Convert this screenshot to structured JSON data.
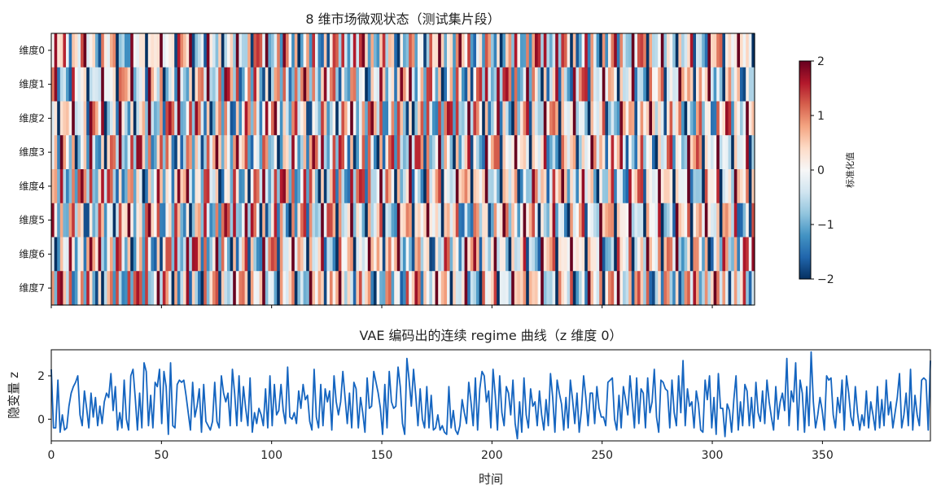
{
  "chart_data": [
    {
      "type": "heatmap",
      "title": "8 维市场微观状态（测试集片段）",
      "rows": [
        "维度0",
        "维度1",
        "维度2",
        "维度3",
        "维度4",
        "维度5",
        "维度6",
        "维度7"
      ],
      "x_range": [
        0,
        399
      ],
      "colorbar": {
        "label": "标准化值",
        "range": [
          -2,
          2
        ],
        "ticks": [
          "−2",
          "−1",
          "0",
          "1",
          "2"
        ],
        "colormap": "RdBu_r"
      },
      "colors": {
        "low": "#053061",
        "mid": "#f7f7f7",
        "high": "#67001f"
      }
    },
    {
      "type": "line",
      "title": "VAE 编码出的连续 regime 曲线（z 维度 0）",
      "xlabel": "时间",
      "ylabel": "隐变量 z",
      "xlim": [
        0,
        399
      ],
      "ylim": [
        -1.0,
        3.2
      ],
      "xticks": [
        "0",
        "50",
        "100",
        "150",
        "200",
        "250",
        "300",
        "350"
      ],
      "yticks": [
        "0",
        "2"
      ],
      "color": "#1565c0",
      "series": [
        {
          "values": [
            2.3,
            -0.4,
            -0.4,
            1.8,
            -0.6,
            0.2,
            -0.5,
            -0.4,
            0.6,
            1.2,
            1.5,
            1.7,
            2.0,
            0.2,
            -0.3,
            1.3,
            0.5,
            -0.4,
            1.2,
            0.1,
            1.0,
            -0.3,
            0.6,
            -0.2,
            0.8,
            1.2,
            1.0,
            2.1,
            0.4,
            1.5,
            -0.5,
            0.3,
            -0.4,
            1.8,
            0.0,
            -0.5,
            2.0,
            2.3,
            1.0,
            -0.5,
            1.2,
            -0.4,
            2.6,
            2.2,
            -0.3,
            1.1,
            -0.4,
            1.7,
            1.5,
            2.3,
            -0.2,
            2.2,
            1.5,
            -0.7,
            2.6,
            -0.3,
            -0.4,
            1.6,
            1.8,
            1.7,
            1.8,
            1.1,
            0.3,
            -0.5,
            1.7,
            0.1,
            0.6,
            1.4,
            -0.6,
            1.6,
            -0.1,
            -0.3,
            -0.5,
            -0.1,
            1.7,
            -0.1,
            -0.4,
            2.0,
            1.2,
            0.8,
            1.2,
            -0.3,
            2.3,
            1.2,
            -0.3,
            2.0,
            -0.1,
            1.5,
            0.5,
            -0.3,
            1.9,
            -0.6,
            0.3,
            -0.2,
            0.5,
            0.2,
            -0.3,
            1.4,
            -0.4,
            2.0,
            -0.3,
            1.6,
            0.2,
            0.4,
            1.6,
            0.4,
            -0.2,
            2.4,
            0.1,
            0.0,
            0.3,
            -0.2,
            1.3,
            0.5,
            1.6,
            0.9,
            1.1,
            -0.1,
            -0.5,
            2.3,
            0.1,
            -0.4,
            1.6,
            -0.3,
            1.4,
            0.8,
            1.3,
            -0.5,
            2.0,
            0.8,
            0.2,
            0.8,
            2.2,
            1.0,
            -0.2,
            1.2,
            -0.4,
            1.7,
            1.4,
            -0.4,
            1.0,
            0.3,
            -0.6,
            1.9,
            0.5,
            0.6,
            2.2,
            1.7,
            1.2,
            0.5,
            -0.7,
            1.6,
            -0.4,
            2.2,
            0.8,
            0.5,
            0.6,
            2.4,
            1.5,
            -0.2,
            -0.7,
            2.8,
            1.8,
            0.6,
            2.3,
            1.1,
            -0.3,
            1.4,
            0.0,
            -0.4,
            1.5,
            -0.4,
            1.1,
            -0.5,
            -0.4,
            0.2,
            -0.5,
            -0.3,
            -0.6,
            -0.7,
            1.5,
            -0.4,
            0.4,
            -0.5,
            -0.7,
            -0.3,
            0.9,
            0.3,
            -0.2,
            1.7,
            0.8,
            -0.3,
            1.9,
            -0.5,
            1.4,
            2.2,
            2.0,
            0.8,
            1.3,
            -0.4,
            2.3,
            1.1,
            -0.5,
            2.0,
            0.3,
            -0.3,
            1.5,
            1.2,
            0.2,
            1.8,
            -0.2,
            -0.9,
            0.8,
            -0.6,
            1.9,
            0.2,
            -0.4,
            1.4,
            0.6,
            0.8,
            -0.3,
            1.3,
            0.2,
            -0.5,
            0.9,
            -0.3,
            2.1,
            1.0,
            -0.6,
            1.8,
            1.2,
            0.7,
            -0.5,
            1.0,
            -0.4,
            1.8,
            0.9,
            -0.2,
            1.2,
            -0.6,
            0.4,
            2.0,
            1.0,
            -0.3,
            1.2,
            1.2,
            -0.2,
            1.5,
            0.5,
            0.1,
            0.1,
            -0.3,
            1.7,
            1.8,
            1.9,
            0.0,
            -0.5,
            1.1,
            -0.4,
            1.5,
            0.9,
            0.2,
            2.0,
            0.8,
            -0.4,
            1.9,
            -0.2,
            1.4,
            1.2,
            -0.4,
            1.9,
            0.3,
            0.8,
            2.3,
            0.1,
            -0.6,
            1.8,
            1.7,
            1.4,
            1.3,
            -0.4,
            1.8,
            0.3,
            -0.3,
            2.0,
            0.3,
            2.7,
            -0.3,
            1.4,
            0.6,
            0.8,
            -0.4,
            1.3,
            0.7,
            -0.5,
            -0.6,
            1.8,
            0.9,
            2.0,
            -0.4,
            1.0,
            -0.7,
            2.1,
            0.5,
            0.5,
            -0.8,
            0.7,
            0.4,
            -0.6,
            0.9,
            2.0,
            -0.5,
            0.8,
            -0.3,
            1.6,
            1.3,
            -0.3,
            1.0,
            -0.4,
            1.7,
            0.3,
            -0.1,
            1.3,
            -0.2,
            1.8,
            0.8,
            0.1,
            -0.5,
            1.5,
            0.0,
            0.8,
            1.2,
            0.4,
            2.8,
            -0.3,
            1.3,
            0.8,
            2.6,
            -0.5,
            1.8,
            1.2,
            -0.6,
            1.5,
            -0.3,
            3.1,
            0.8,
            -0.4,
            0.2,
            1.0,
            0.4,
            -0.5,
            2.0,
            1.8,
            1.9,
            0.2,
            -0.4,
            1.0,
            0.3,
            1.8,
            -0.5,
            2.0,
            1.2,
            0.1,
            -0.3,
            1.5,
            0.3,
            -0.5,
            0.2,
            -0.3,
            1.3,
            -0.4,
            0.8,
            0.2,
            -0.5,
            1.5,
            -0.4,
            0.9,
            -0.3,
            1.8,
            0.2,
            0.8,
            -0.4,
            0.3,
            1.0,
            2.1,
            -0.4,
            0.2,
            1.2,
            -0.3,
            2.3,
            -0.5,
            1.1,
            0.2,
            -0.3,
            1.8,
            1.9,
            1.8,
            -0.5,
            2.7
          ]
        }
      ]
    }
  ]
}
